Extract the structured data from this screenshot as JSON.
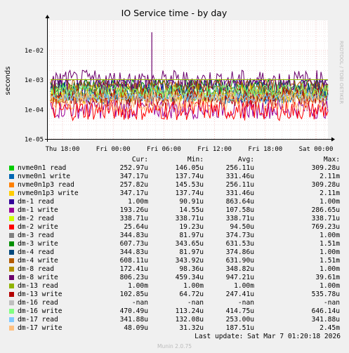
{
  "title": "IO Service time - by day",
  "watermark": "RRDTOOL / TOBI OETIKER",
  "chart_data": {
    "type": "line",
    "title": "IO Service time - by day",
    "ylabel": "seconds",
    "yscale": "log",
    "ylim": [
      1e-05,
      0.1
    ],
    "yticks": [
      "1e-05",
      "1e-04",
      "1e-03",
      "1e-02"
    ],
    "xticks": [
      "Thu 18:00",
      "Fri 00:00",
      "Fri 06:00",
      "Fri 12:00",
      "Fri 18:00",
      "Sat 00:00"
    ],
    "grid": true,
    "series": [
      {
        "name": "nvme0n1 read",
        "color": "#00cc00",
        "cur": "252.97u",
        "min": "146.05u",
        "avg": "256.11u",
        "max": "309.28u",
        "level": 0.000256
      },
      {
        "name": "nvme0n1 write",
        "color": "#0066b3",
        "cur": "347.17u",
        "min": "137.74u",
        "avg": "331.46u",
        "max": "2.11m",
        "level": 0.000331
      },
      {
        "name": "nvme0n1p3 read",
        "color": "#ff8000",
        "cur": "257.82u",
        "min": "145.53u",
        "avg": "256.11u",
        "max": "309.28u",
        "level": 0.000256
      },
      {
        "name": "nvme0n1p3 write",
        "color": "#ffcc00",
        "cur": "347.17u",
        "min": "137.74u",
        "avg": "331.46u",
        "max": "2.11m",
        "level": 0.000331
      },
      {
        "name": "dm-1 read",
        "color": "#330099",
        "cur": "1.00m",
        "min": "90.91u",
        "avg": "863.64u",
        "max": "1.00m",
        "level": 0.00086
      },
      {
        "name": "dm-1 write",
        "color": "#990099",
        "cur": "193.26u",
        "min": "14.55u",
        "avg": "107.58u",
        "max": "286.65u",
        "level": 0.000108
      },
      {
        "name": "dm-2 read",
        "color": "#ccff00",
        "cur": "338.71u",
        "min": "338.71u",
        "avg": "338.71u",
        "max": "338.71u",
        "level": 0.000339
      },
      {
        "name": "dm-2 write",
        "color": "#ff0000",
        "cur": "25.64u",
        "min": "19.23u",
        "avg": "94.50u",
        "max": "769.23u",
        "level": 9.45e-05
      },
      {
        "name": "dm-3 read",
        "color": "#808080",
        "cur": "344.83u",
        "min": "81.97u",
        "avg": "374.73u",
        "max": "1.00m",
        "level": 0.000375
      },
      {
        "name": "dm-3 write",
        "color": "#008f00",
        "cur": "607.73u",
        "min": "343.65u",
        "avg": "631.53u",
        "max": "1.51m",
        "level": 0.000632
      },
      {
        "name": "dm-4 read",
        "color": "#00487d",
        "cur": "344.83u",
        "min": "81.97u",
        "avg": "374.86u",
        "max": "1.00m",
        "level": 0.000375
      },
      {
        "name": "dm-4 write",
        "color": "#b35a00",
        "cur": "608.11u",
        "min": "343.92u",
        "avg": "631.90u",
        "max": "1.51m",
        "level": 0.000632
      },
      {
        "name": "dm-8 read",
        "color": "#b38f00",
        "cur": "172.41u",
        "min": "98.36u",
        "avg": "348.82u",
        "max": "1.00m",
        "level": 0.000349
      },
      {
        "name": "dm-8 write",
        "color": "#6b006b",
        "cur": "806.23u",
        "min": "459.34u",
        "avg": "947.21u",
        "max": "39.61m",
        "level": 0.000947
      },
      {
        "name": "dm-13 read",
        "color": "#8fb300",
        "cur": "1.00m",
        "min": "1.00m",
        "avg": "1.00m",
        "max": "1.00m",
        "level": 0.001
      },
      {
        "name": "dm-13 write",
        "color": "#b30000",
        "cur": "102.85u",
        "min": "64.72u",
        "avg": "247.41u",
        "max": "535.78u",
        "level": 0.000247
      },
      {
        "name": "dm-16 read",
        "color": "#bebebe",
        "cur": "-nan",
        "min": "-nan",
        "avg": "-nan",
        "max": "-nan",
        "level": null
      },
      {
        "name": "dm-16 write",
        "color": "#80ff80",
        "cur": "470.49u",
        "min": "113.24u",
        "avg": "414.75u",
        "max": "646.14u",
        "level": 0.000415
      },
      {
        "name": "dm-17 read",
        "color": "#80c9ff",
        "cur": "341.88u",
        "min": "132.08u",
        "avg": "253.00u",
        "max": "341.88u",
        "level": 0.000253
      },
      {
        "name": "dm-17 write",
        "color": "#ffc080",
        "cur": "48.09u",
        "min": "31.32u",
        "avg": "187.51u",
        "max": "2.45m",
        "level": 0.000188
      }
    ]
  },
  "legend_headers": {
    "cur": "Cur:",
    "min": "Min:",
    "avg": "Avg:",
    "max": "Max:"
  },
  "last_update": "Last update: Sat Mar  7 01:20:18 2026",
  "footer": "Munin 2.0.75"
}
